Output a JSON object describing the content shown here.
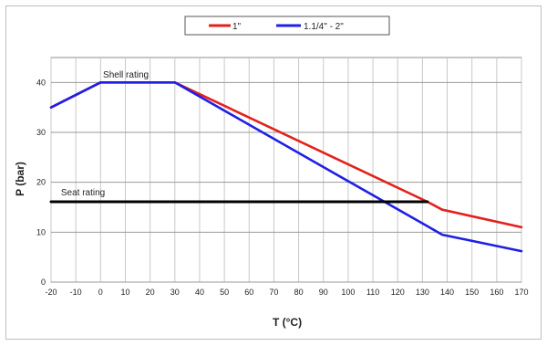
{
  "chart_data": {
    "type": "line",
    "title": "",
    "xlabel": "T (°C)",
    "ylabel": "P (bar)",
    "xlim": [
      -20,
      170
    ],
    "ylim": [
      0,
      45
    ],
    "x_ticks": [
      -20,
      -10,
      0,
      10,
      20,
      30,
      40,
      50,
      60,
      70,
      80,
      90,
      100,
      110,
      120,
      130,
      140,
      150,
      160,
      170
    ],
    "y_ticks": [
      0,
      10,
      20,
      30,
      40
    ],
    "grid": true,
    "legend_position": "top-center",
    "series": [
      {
        "name": "1\"",
        "color": "#e3211c",
        "x": [
          -20,
          0,
          30,
          132,
          138,
          170
        ],
        "y": [
          35,
          40,
          40,
          16.1,
          14.5,
          11
        ]
      },
      {
        "name": "1.1/4\" - 2\"",
        "color": "#1f1fe6",
        "x": [
          -20,
          0,
          30,
          132,
          138,
          170
        ],
        "y": [
          35,
          40,
          40,
          11.2,
          9.5,
          6.2
        ]
      },
      {
        "name": "Seat rating",
        "color": "#000000",
        "x": [
          -20,
          132
        ],
        "y": [
          16.1,
          16.1
        ]
      }
    ],
    "annotations": [
      {
        "text": "Shell rating",
        "x": 1,
        "y": 40.4
      },
      {
        "text": "Seat rating",
        "x": -16,
        "y": 16.8
      }
    ]
  }
}
